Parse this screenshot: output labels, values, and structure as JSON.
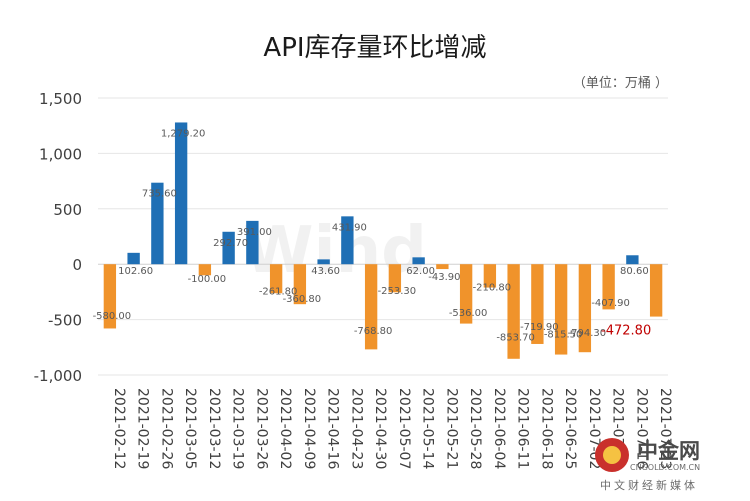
{
  "chart_data": {
    "type": "bar",
    "title": "API库存量环比增减",
    "unit_label": "（单位：万桶 ）",
    "categories": [
      "2021-02-12",
      "2021-02-19",
      "2021-02-26",
      "2021-03-05",
      "2021-03-12",
      "2021-03-19",
      "2021-03-26",
      "2021-04-02",
      "2021-04-09",
      "2021-04-16",
      "2021-04-23",
      "2021-04-30",
      "2021-05-07",
      "2021-05-14",
      "2021-05-21",
      "2021-05-28",
      "2021-06-04",
      "2021-06-11",
      "2021-06-18",
      "2021-06-25",
      "2021-07-02",
      "2021-07-09",
      "2021-07-16",
      "2021-07-23"
    ],
    "values": [
      -580.0,
      102.6,
      735.6,
      1279.2,
      -100.0,
      292.7,
      391.0,
      -261.8,
      -360.8,
      43.6,
      431.9,
      -768.8,
      -253.3,
      62.0,
      -43.9,
      -536.0,
      -210.8,
      -853.7,
      -719.9,
      -815.5,
      -794.3,
      -407.9,
      80.6,
      -472.8
    ],
    "data_labels": [
      "-580.00",
      "102.60",
      "735.60",
      "1,279.20",
      "-100.00",
      "292.70",
      "391.00",
      "-261.80",
      "-360.80",
      "43.60",
      "431.90",
      "-768.80",
      "-253.30",
      "62.00",
      "-43.90",
      "-536.00",
      "-210.80",
      "-853.70",
      "-719.90",
      "-815.50",
      "-794.30",
      "-407.90",
      "80.60",
      "-472.80"
    ],
    "highlight_index": 23,
    "ylim": [
      -1000,
      1500
    ],
    "yticks": [
      1500,
      1000,
      500,
      0,
      -500,
      -1000
    ],
    "ytick_labels": [
      "1,500",
      "1,000",
      "500",
      "0",
      "-500",
      "-1,000"
    ],
    "grid": true,
    "legend": "none",
    "colors": {
      "positive": "#1f6fb5",
      "negative": "#f0932b",
      "highlight_label": "#c00000"
    }
  },
  "watermark": {
    "text": "Wind"
  },
  "logo": {
    "name": "中金网",
    "domain": "CNGOLD.COM.CN",
    "slogan": "中文财经新媒体"
  }
}
